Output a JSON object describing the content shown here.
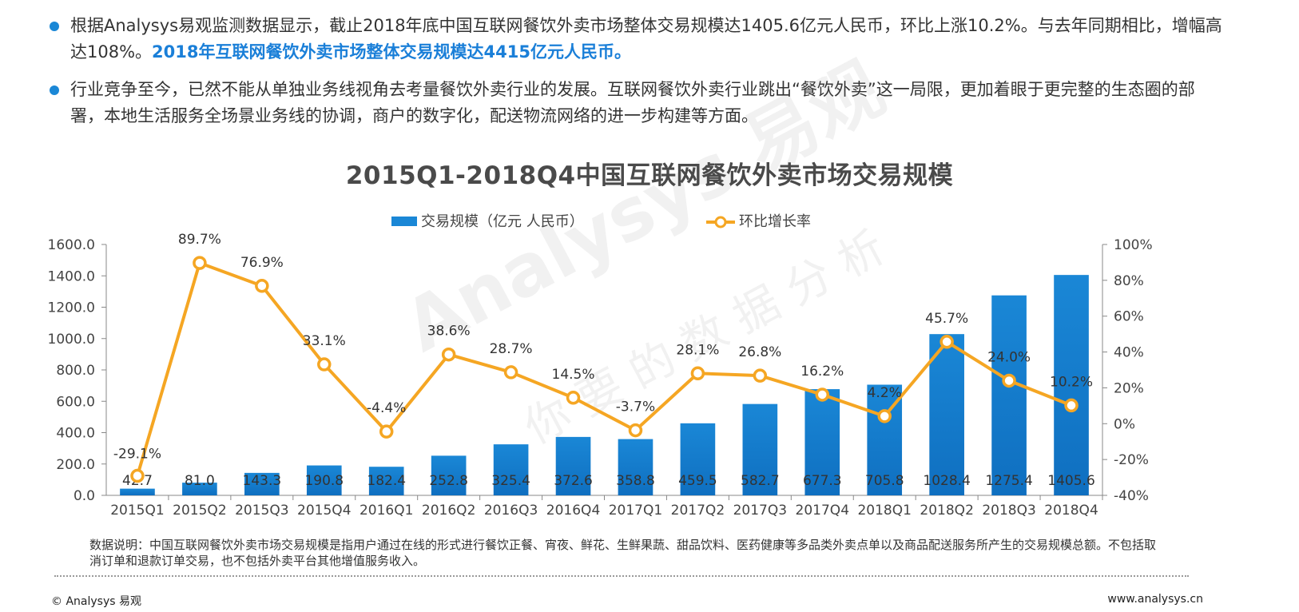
{
  "bullets": [
    {
      "text": "根据Analysys易观监测数据显示，截止2018年底中国互联网餐饮外卖市场整体交易规模达1405.6亿元人民币，环比上涨10.2%。与去年同期相比，增幅高达108%。",
      "highlight": "2018年互联网餐饮外卖市场整体交易规模达4415亿元人民币。"
    },
    {
      "text": "行业竞争至今，已然不能从单独业务线视角去考量餐饮外卖行业的发展。互联网餐饮外卖行业跳出“餐饮外卖”这一局限，更加着眼于更完整的生态圈的部署，本地生活服务全场景业务线的协调，商户的数字化，配送物流网络的进一步构建等方面。",
      "highlight": ""
    }
  ],
  "watermark": {
    "brand": "Analysys 易观",
    "slogan": "你要的数据分析"
  },
  "colors": {
    "bar": "#1a87d6",
    "line": "#f5a623",
    "bullet": "#1a87d6",
    "highlight": "#1a7fd8"
  },
  "chart_data": {
    "type": "bar",
    "title": "2015Q1-2018Q4中国互联网餐饮外卖市场交易规模",
    "categories": [
      "2015Q1",
      "2015Q2",
      "2015Q3",
      "2015Q4",
      "2016Q1",
      "2016Q2",
      "2016Q3",
      "2016Q4",
      "2017Q1",
      "2017Q2",
      "2017Q3",
      "2017Q4",
      "2018Q1",
      "2018Q2",
      "2018Q3",
      "2018Q4"
    ],
    "series": [
      {
        "name": "交易规模（亿元 人民币）",
        "type": "bar",
        "axis": "left",
        "values": [
          42.7,
          81.0,
          143.3,
          190.8,
          182.4,
          252.8,
          325.4,
          372.6,
          358.8,
          459.5,
          582.7,
          677.3,
          705.8,
          1028.4,
          1275.4,
          1405.6
        ],
        "labels": [
          "42.7",
          "81.0",
          "143.3",
          "190.8",
          "182.4",
          "252.8",
          "325.4",
          "372.6",
          "358.8",
          "459.5",
          "582.7",
          "677.3",
          "705.8",
          "1028.4",
          "1275.4",
          "1405.6"
        ]
      },
      {
        "name": "环比增长率",
        "type": "line",
        "axis": "right",
        "values": [
          -29.1,
          89.7,
          76.9,
          33.1,
          -4.4,
          38.6,
          28.7,
          14.5,
          -3.7,
          28.1,
          26.8,
          16.2,
          4.2,
          45.7,
          24.0,
          10.2
        ],
        "labels": [
          "-29.1%",
          "89.7%",
          "76.9%",
          "33.1%",
          "-4.4%",
          "38.6%",
          "28.7%",
          "14.5%",
          "-3.7%",
          "28.1%",
          "26.8%",
          "16.2%",
          "4.2%",
          "45.7%",
          "24.0%",
          "10.2%"
        ]
      }
    ],
    "y_left": {
      "min": 0,
      "max": 1600,
      "ticks": [
        "0.0",
        "200.0",
        "400.0",
        "600.0",
        "800.0",
        "1000.0",
        "1200.0",
        "1400.0",
        "1600.0"
      ]
    },
    "y_right": {
      "min": -40,
      "max": 100,
      "ticks": [
        "-40%",
        "-20%",
        "0%",
        "20%",
        "40%",
        "60%",
        "80%",
        "100%"
      ]
    },
    "legend_position": "top-center",
    "grid": false
  },
  "note": "数据说明：中国互联网餐饮外卖市场交易规模是指用户通过在线的形式进行餐饮正餐、宵夜、鲜花、生鲜果蔬、甜品饮料、医药健康等多品类外卖点单以及商品配送服务所产生的交易规模总额。不包括取消订单和退款订单交易，也不包括外卖平台其他增值服务收入。",
  "footer": {
    "left": "© Analysys 易观",
    "right": "www.analysys.cn"
  }
}
